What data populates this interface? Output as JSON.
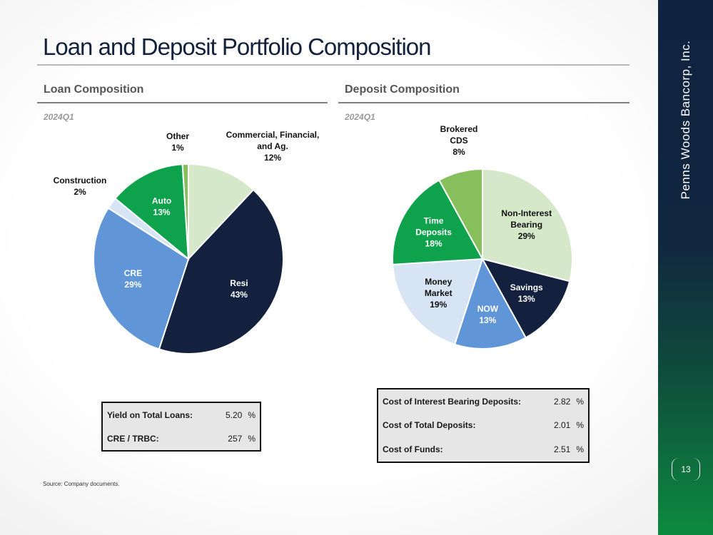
{
  "slide": {
    "title": "Loan and Deposit Portfolio Composition",
    "company": "Penns Woods Bancorp, Inc.",
    "page_number": "13",
    "source": "Source: Company documents."
  },
  "loan": {
    "heading": "Loan Composition",
    "period": "2024Q1",
    "metrics": [
      {
        "label": "Yield on Total Loans:",
        "value": "5.20",
        "unit": "%"
      },
      {
        "label": "CRE / TRBC:",
        "value": "257",
        "unit": "%"
      }
    ]
  },
  "deposit": {
    "heading": "Deposit Composition",
    "period": "2024Q1",
    "metrics": [
      {
        "label": "Cost of Interest Bearing Deposits:",
        "value": "2.82",
        "unit": "%"
      },
      {
        "label": "Cost of Total Deposits:",
        "value": "2.01",
        "unit": "%"
      },
      {
        "label": "Cost of Funds:",
        "value": "2.51",
        "unit": "%"
      }
    ]
  },
  "chart_data": [
    {
      "type": "pie",
      "title": "",
      "slices": [
        {
          "label": "Commercial, Financial, and Ag.",
          "lines": [
            "Commercial, Financial,",
            "and Ag."
          ],
          "pct_label": "12%",
          "value": 12.0,
          "color": "#d5e8c9",
          "text_color": "#111111",
          "outside": true
        },
        {
          "label": "Resi",
          "lines": [
            "Resi"
          ],
          "pct_label": "43%",
          "value": 43.0,
          "color": "#13213f",
          "text_color": "#ffffff",
          "outside": false
        },
        {
          "label": "CRE",
          "lines": [
            "CRE"
          ],
          "pct_label": "29%",
          "value": 29.0,
          "color": "#6096d8",
          "text_color": "#ffffff",
          "outside": false
        },
        {
          "label": "Construction",
          "lines": [
            "Construction"
          ],
          "pct_label": "2%",
          "value": 2.0,
          "color": "#d6e4f3",
          "text_color": "#111111",
          "outside": true
        },
        {
          "label": "Auto",
          "lines": [
            "Auto"
          ],
          "pct_label": "13%",
          "value": 13.0,
          "color": "#0ea24d",
          "text_color": "#ffffff",
          "outside": false
        },
        {
          "label": "Other",
          "lines": [
            "Other"
          ],
          "pct_label": "1%",
          "value": 1.0,
          "color": "#86bf5c",
          "text_color": "#111111",
          "outside": true
        }
      ]
    },
    {
      "type": "pie",
      "title": "",
      "slices": [
        {
          "label": "Non-Interest Bearing",
          "lines": [
            "Non-Interest",
            "Bearing"
          ],
          "pct_label": "29%",
          "value": 29.0,
          "color": "#d5e8c9",
          "text_color": "#111111",
          "outside": false
        },
        {
          "label": "Savings",
          "lines": [
            "Savings"
          ],
          "pct_label": "13%",
          "value": 13.0,
          "color": "#13213f",
          "text_color": "#ffffff",
          "outside": false
        },
        {
          "label": "NOW",
          "lines": [
            "NOW"
          ],
          "pct_label": "13%",
          "value": 13.0,
          "color": "#6096d8",
          "text_color": "#ffffff",
          "outside": false
        },
        {
          "label": "Money Market",
          "lines": [
            "Money",
            "Market"
          ],
          "pct_label": "19%",
          "value": 19.0,
          "color": "#d6e4f3",
          "text_color": "#111111",
          "outside": false
        },
        {
          "label": "Time Deposits",
          "lines": [
            "Time",
            "Deposits"
          ],
          "pct_label": "18%",
          "value": 18.0,
          "color": "#0ea24d",
          "text_color": "#ffffff",
          "outside": false
        },
        {
          "label": "Brokered CDS",
          "lines": [
            "Brokered",
            "CDS"
          ],
          "pct_label": "8%",
          "value": 8.0,
          "color": "#86bf5c",
          "text_color": "#111111",
          "outside": true
        }
      ]
    }
  ]
}
